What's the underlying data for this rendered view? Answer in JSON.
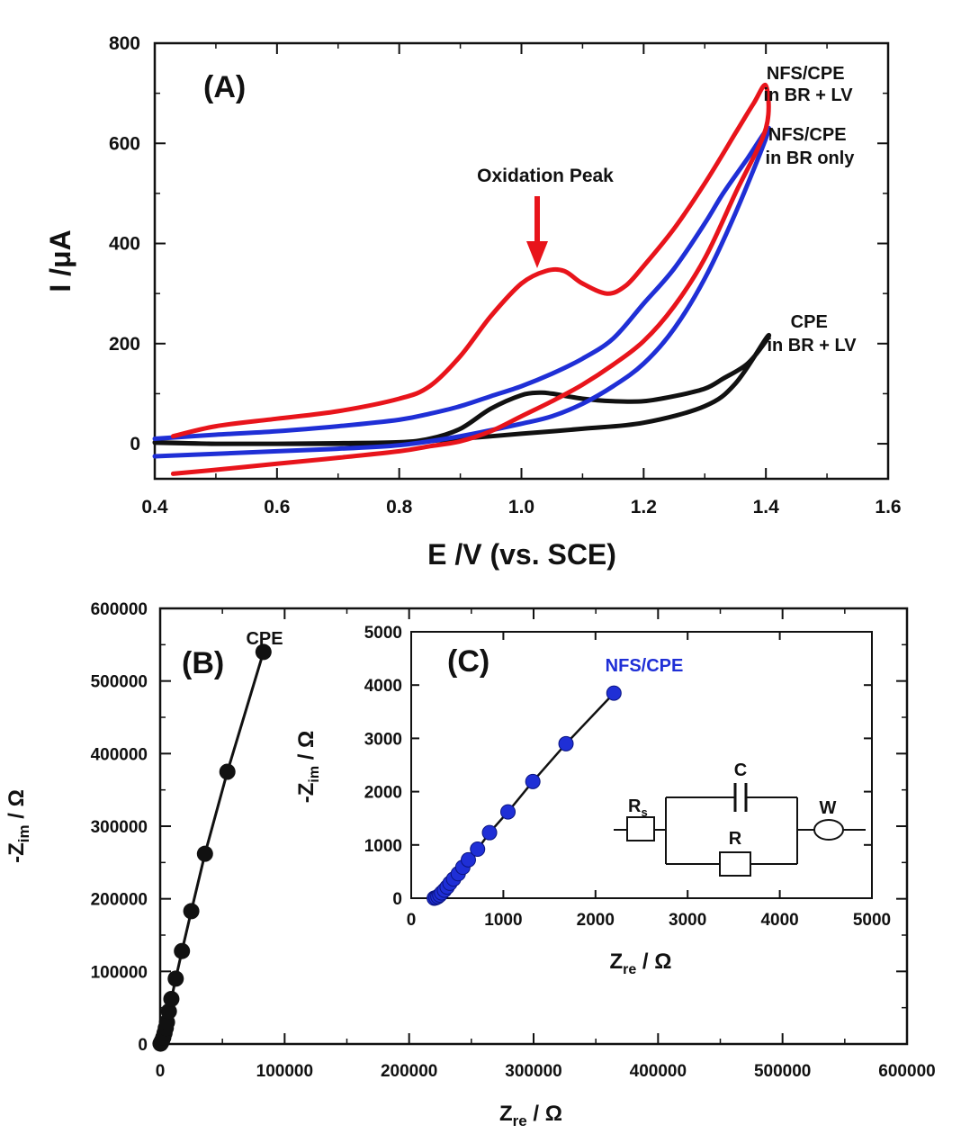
{
  "colors": {
    "red": "#e8141b",
    "blue": "#1f2fd6",
    "black": "#111111"
  },
  "chart_data": [
    {
      "id": "A",
      "type": "line",
      "panel_label": "(A)",
      "xlabel": "E /V (vs. SCE)",
      "ylabel": "I /μA",
      "xlim": [
        0.4,
        1.6
      ],
      "ylim": [
        -70,
        800
      ],
      "xticks": [
        "0.4",
        "0.6",
        "0.8",
        "1.0",
        "1.2",
        "1.4",
        "1.6"
      ],
      "yticks": [
        "0",
        "200",
        "400",
        "600",
        "800"
      ],
      "annotation": {
        "text": "Oxidation Peak",
        "x": 1.05,
        "y": 345
      },
      "series": [
        {
          "name": "NFS/CPE in BR + LV",
          "label_lines": [
            "NFS/CPE",
            "in BR + LV"
          ],
          "color": "red",
          "points": [
            [
              0.43,
              -60
            ],
            [
              0.5,
              -52
            ],
            [
              0.6,
              -40
            ],
            [
              0.7,
              -28
            ],
            [
              0.8,
              -15
            ],
            [
              0.85,
              -5
            ],
            [
              0.9,
              5
            ],
            [
              0.95,
              25
            ],
            [
              1.0,
              55
            ],
            [
              1.05,
              85
            ],
            [
              1.1,
              118
            ],
            [
              1.15,
              158
            ],
            [
              1.2,
              205
            ],
            [
              1.25,
              275
            ],
            [
              1.3,
              370
            ],
            [
              1.35,
              500
            ],
            [
              1.4,
              630
            ],
            [
              1.4,
              715
            ],
            [
              1.38,
              680
            ],
            [
              1.35,
              620
            ],
            [
              1.3,
              520
            ],
            [
              1.25,
              430
            ],
            [
              1.2,
              355
            ],
            [
              1.17,
              315
            ],
            [
              1.14,
              300
            ],
            [
              1.1,
              320
            ],
            [
              1.07,
              345
            ],
            [
              1.04,
              345
            ],
            [
              1.0,
              320
            ],
            [
              0.95,
              255
            ],
            [
              0.9,
              175
            ],
            [
              0.85,
              115
            ],
            [
              0.8,
              90
            ],
            [
              0.7,
              65
            ],
            [
              0.6,
              50
            ],
            [
              0.5,
              35
            ],
            [
              0.43,
              15
            ]
          ]
        },
        {
          "name": "NFS/CPE in BR only",
          "label_lines": [
            "NFS/CPE",
            "in BR only"
          ],
          "color": "blue",
          "points": [
            [
              0.4,
              -25
            ],
            [
              0.5,
              -20
            ],
            [
              0.6,
              -15
            ],
            [
              0.7,
              -10
            ],
            [
              0.8,
              -3
            ],
            [
              0.9,
              15
            ],
            [
              1.0,
              40
            ],
            [
              1.05,
              55
            ],
            [
              1.1,
              80
            ],
            [
              1.15,
              115
            ],
            [
              1.2,
              160
            ],
            [
              1.25,
              230
            ],
            [
              1.3,
              330
            ],
            [
              1.35,
              460
            ],
            [
              1.4,
              610
            ],
            [
              1.4,
              625
            ],
            [
              1.37,
              570
            ],
            [
              1.33,
              500
            ],
            [
              1.3,
              440
            ],
            [
              1.25,
              350
            ],
            [
              1.2,
              280
            ],
            [
              1.15,
              210
            ],
            [
              1.1,
              170
            ],
            [
              1.05,
              140
            ],
            [
              1.0,
              115
            ],
            [
              0.95,
              95
            ],
            [
              0.9,
              75
            ],
            [
              0.85,
              60
            ],
            [
              0.8,
              48
            ],
            [
              0.7,
              35
            ],
            [
              0.6,
              25
            ],
            [
              0.5,
              18
            ],
            [
              0.4,
              10
            ]
          ]
        },
        {
          "name": "CPE in BR + LV",
          "label_lines": [
            "CPE",
            "in BR + LV"
          ],
          "color": "black",
          "points": [
            [
              0.4,
              2
            ],
            [
              0.5,
              0
            ],
            [
              0.6,
              0
            ],
            [
              0.7,
              0
            ],
            [
              0.8,
              2
            ],
            [
              0.9,
              10
            ],
            [
              1.0,
              20
            ],
            [
              1.1,
              30
            ],
            [
              1.2,
              42
            ],
            [
              1.3,
              75
            ],
            [
              1.35,
              120
            ],
            [
              1.4,
              210
            ],
            [
              1.4,
              205
            ],
            [
              1.37,
              160
            ],
            [
              1.33,
              130
            ],
            [
              1.3,
              110
            ],
            [
              1.25,
              95
            ],
            [
              1.2,
              85
            ],
            [
              1.15,
              85
            ],
            [
              1.1,
              90
            ],
            [
              1.05,
              100
            ],
            [
              1.03,
              102
            ],
            [
              1.0,
              97
            ],
            [
              0.95,
              70
            ],
            [
              0.9,
              30
            ],
            [
              0.85,
              10
            ],
            [
              0.8,
              3
            ],
            [
              0.7,
              1
            ],
            [
              0.6,
              0
            ],
            [
              0.5,
              0
            ],
            [
              0.4,
              3
            ]
          ]
        }
      ]
    },
    {
      "id": "B",
      "type": "scatter",
      "panel_label": "(B)",
      "xlabel_main": "Z",
      "xlabel_sub": "re",
      "xlabel_tail": " / Ω",
      "ylabel_main": "-Z",
      "ylabel_sub": "im",
      "ylabel_tail": " / Ω",
      "xlim": [
        0,
        600000
      ],
      "ylim": [
        0,
        600000
      ],
      "xticks": [
        "0",
        "100000",
        "200000",
        "300000",
        "400000",
        "500000",
        "600000"
      ],
      "yticks": [
        "0",
        "100000",
        "200000",
        "300000",
        "400000",
        "500000",
        "600000"
      ],
      "series": [
        {
          "name": "CPE",
          "label": "CPE",
          "color": "black",
          "points": [
            [
              300,
              500
            ],
            [
              800,
              2000
            ],
            [
              1500,
              4500
            ],
            [
              2500,
              9000
            ],
            [
              3500,
              15000
            ],
            [
              4500,
              22000
            ],
            [
              5500,
              30000
            ],
            [
              7000,
              45000
            ],
            [
              9000,
              62000
            ],
            [
              12500,
              90000
            ],
            [
              17500,
              128000
            ],
            [
              25000,
              183000
            ],
            [
              36000,
              262000
            ],
            [
              54000,
              375000
            ],
            [
              83000,
              540000
            ]
          ]
        }
      ]
    },
    {
      "id": "C",
      "type": "scatter",
      "panel_label": "(C)",
      "xlabel_main": "Z",
      "xlabel_sub": "re",
      "xlabel_tail": " / Ω",
      "ylabel_main": "-Z",
      "ylabel_sub": "im",
      "ylabel_tail": " / Ω",
      "xlim": [
        0,
        5000
      ],
      "ylim": [
        0,
        5000
      ],
      "xticks": [
        "0",
        "1000",
        "2000",
        "3000",
        "4000",
        "5000"
      ],
      "yticks": [
        "0",
        "1000",
        "2000",
        "3000",
        "4000",
        "5000"
      ],
      "series": [
        {
          "name": "NFS/CPE",
          "label": "NFS/CPE",
          "color": "blue",
          "points": [
            [
              250,
              0
            ],
            [
              270,
              10
            ],
            [
              290,
              30
            ],
            [
              310,
              60
            ],
            [
              330,
              100
            ],
            [
              360,
              150
            ],
            [
              390,
              210
            ],
            [
              420,
              280
            ],
            [
              460,
              360
            ],
            [
              510,
              460
            ],
            [
              560,
              580
            ],
            [
              620,
              720
            ],
            [
              720,
              920
            ],
            [
              850,
              1230
            ],
            [
              1050,
              1620
            ],
            [
              1320,
              2190
            ],
            [
              1680,
              2900
            ],
            [
              2200,
              3850
            ]
          ]
        }
      ],
      "circuit": {
        "rs": "R",
        "rs_sub": "s",
        "c": "C",
        "r": "R",
        "w": "W"
      }
    }
  ]
}
